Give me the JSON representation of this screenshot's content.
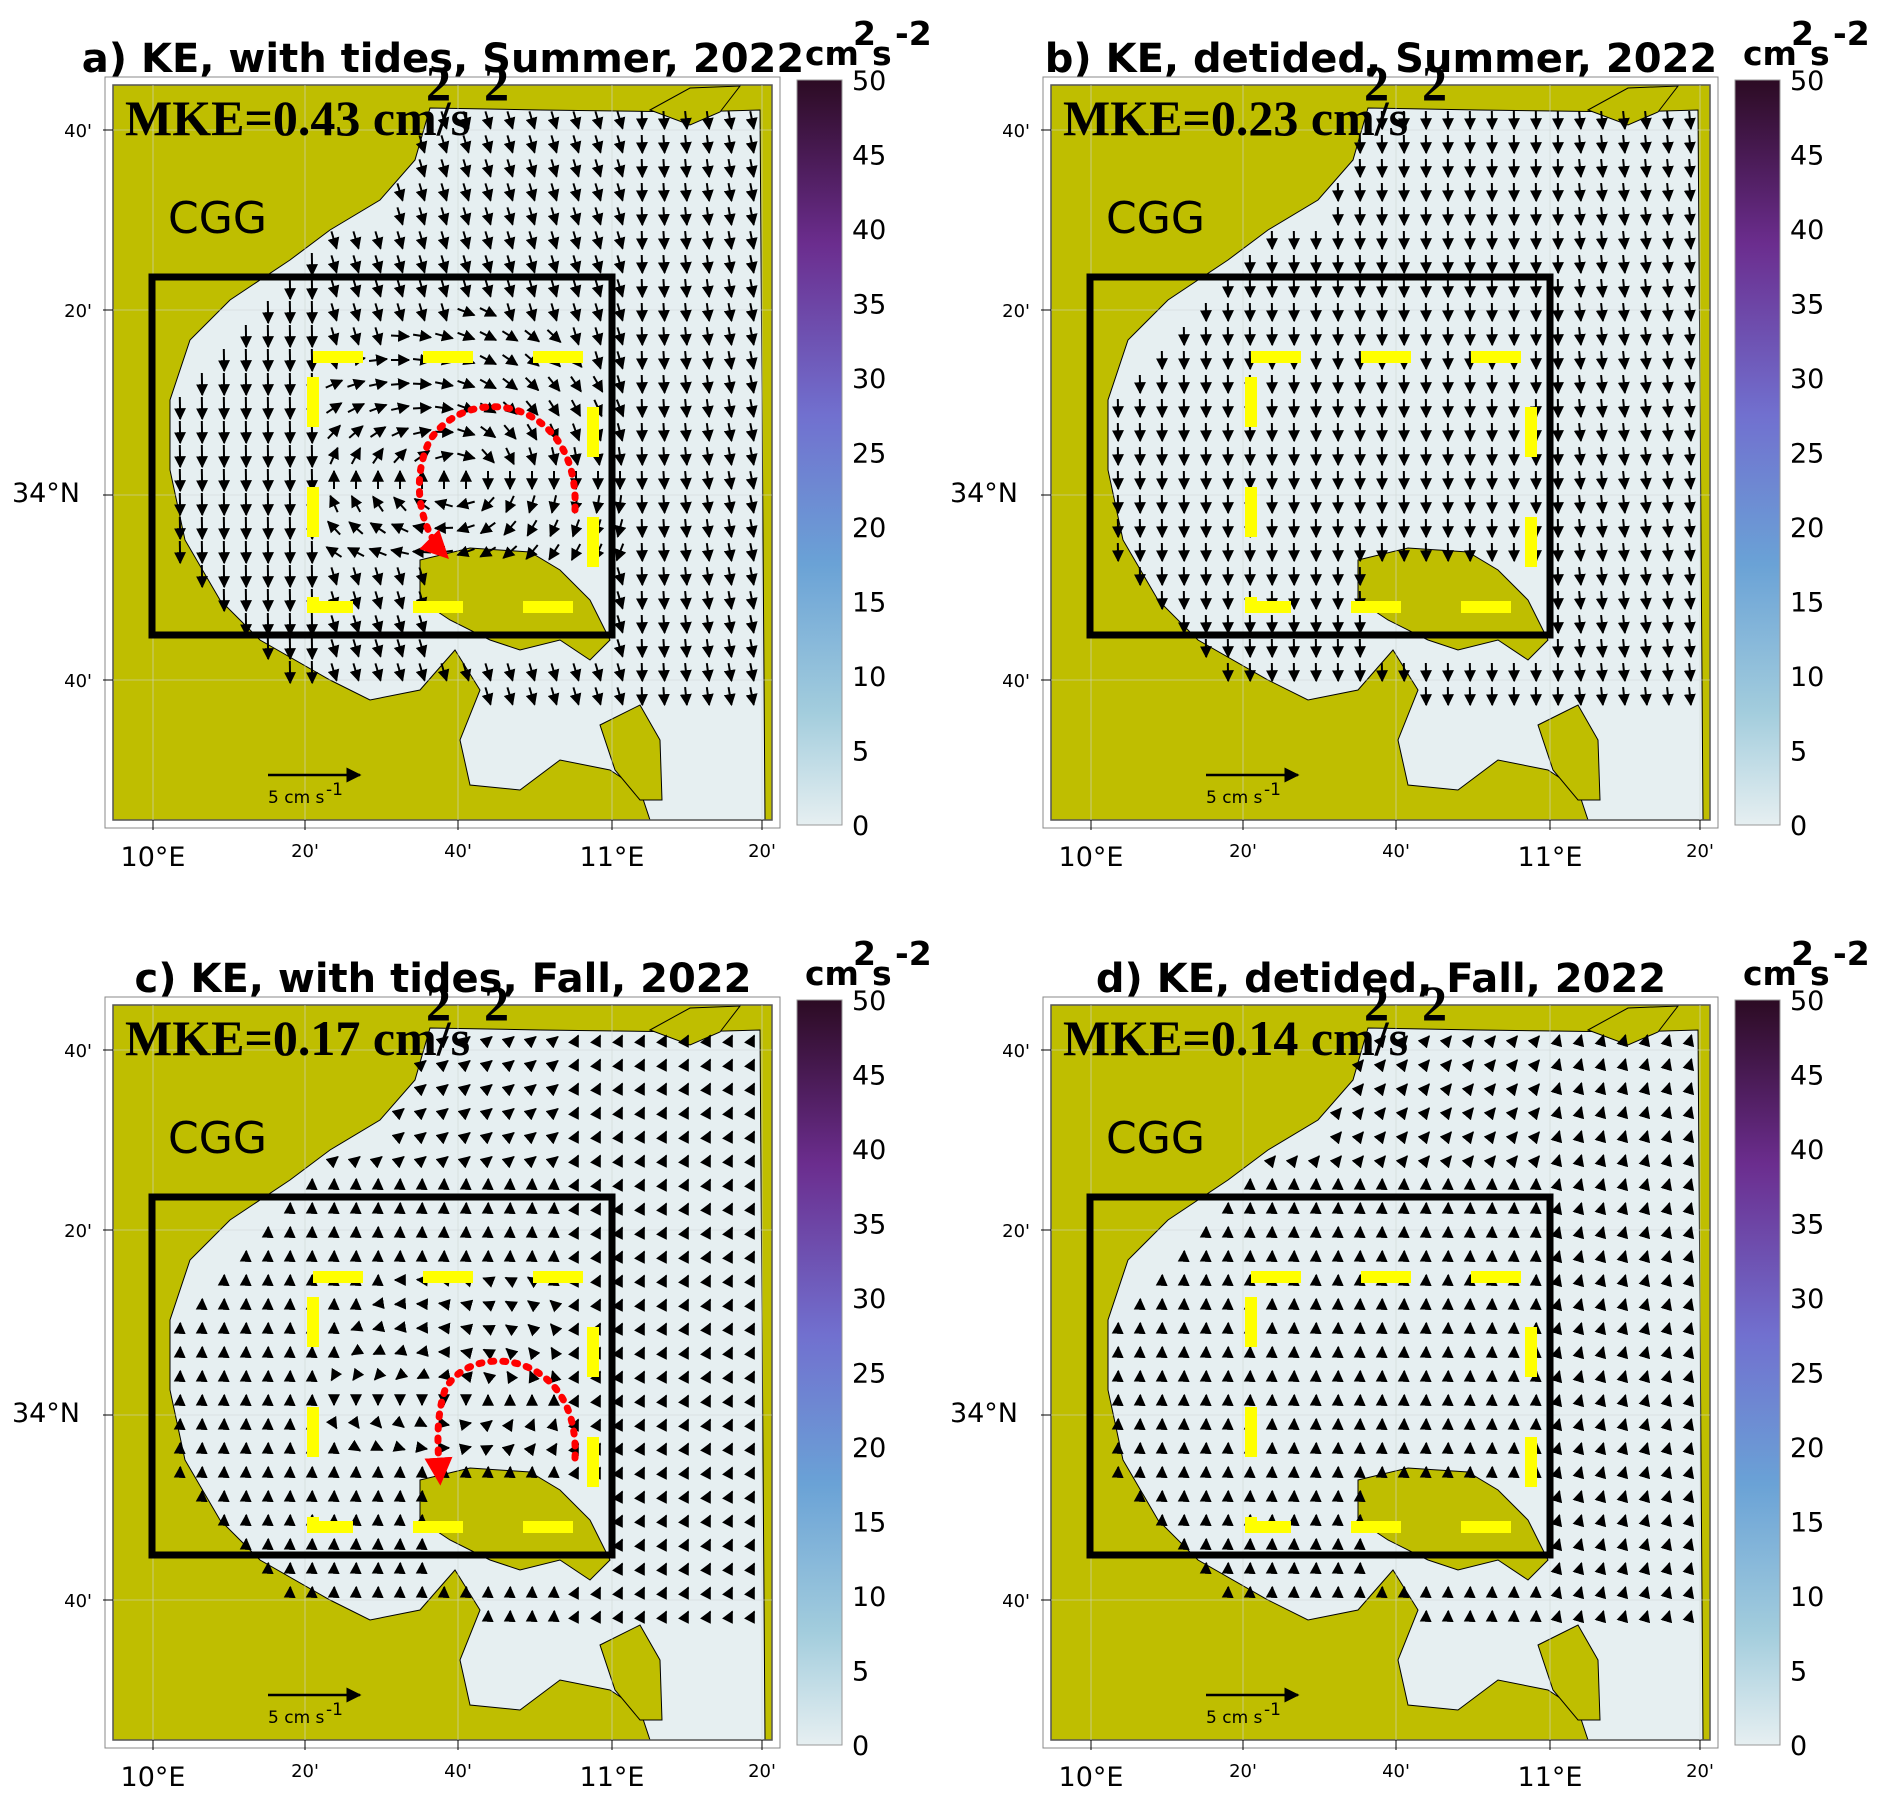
{
  "panels": [
    {
      "id": "a",
      "title": "a) KE, with tides, Summer, 2022",
      "mke_label": "MKE=0.43 cm/s",
      "flow": "summer",
      "eddy_highlight": true
    },
    {
      "id": "b",
      "title": "b) KE, detided, Summer, 2022",
      "mke_label": "MKE=0.23 cm/s",
      "flow": "summer-detided",
      "eddy_highlight": false
    },
    {
      "id": "c",
      "title": "c) KE, with tides, Fall, 2022",
      "mke_label": "MKE=0.17 cm/s",
      "flow": "fall",
      "eddy_highlight": true
    },
    {
      "id": "d",
      "title": "d) KE, detided, Fall, 2022",
      "mke_label": "MKE=0.14 cm/s",
      "flow": "fall-detided",
      "eddy_highlight": false
    }
  ],
  "mke_superscript": "2",
  "region_label": "CGG",
  "colorbar": {
    "unit_base1": "cm",
    "unit_sup1": "2",
    "unit_base2": "s",
    "unit_sup2": "-2",
    "ticks": [
      "0",
      "5",
      "10",
      "15",
      "20",
      "25",
      "30",
      "35",
      "40",
      "45",
      "50"
    ],
    "min": 0,
    "max": 50,
    "colors": [
      "#e6eff1",
      "#a3cddd",
      "#6aa2d6",
      "#7170cf",
      "#6b2d8e",
      "#2c0b23"
    ]
  },
  "x_ticks": [
    {
      "label": "10°E",
      "major": true
    },
    {
      "label": "20'",
      "major": false
    },
    {
      "label": "40'",
      "major": false
    },
    {
      "label": "11°E",
      "major": true
    },
    {
      "label": "20'",
      "major": false
    }
  ],
  "y_ticks": [
    {
      "label": "40'",
      "major": false
    },
    {
      "label": "20'",
      "major": false
    },
    {
      "label": "34°N",
      "major": true
    },
    {
      "label": "40'",
      "major": false
    }
  ],
  "scale_arrow": {
    "label": "5 cm s",
    "sup": "-1"
  },
  "colors": {
    "land": "#bfbe00",
    "sea": "#e6eff1",
    "box": "#000000",
    "dashed_box": "#ffff00",
    "eddy_arrow": "#ff0000"
  }
}
